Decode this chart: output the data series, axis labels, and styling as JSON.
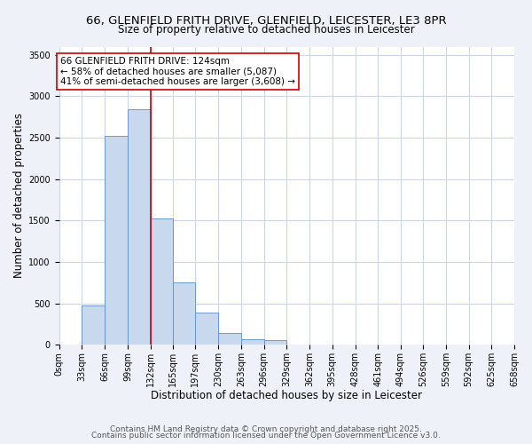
{
  "title_line1": "66, GLENFIELD FRITH DRIVE, GLENFIELD, LEICESTER, LE3 8PR",
  "title_line2": "Size of property relative to detached houses in Leicester",
  "xlabel": "Distribution of detached houses by size in Leicester",
  "ylabel": "Number of detached properties",
  "bar_edges": [
    0,
    33,
    66,
    99,
    132,
    165,
    197,
    230,
    263,
    296,
    329,
    362,
    395,
    428,
    461,
    494,
    526,
    559,
    592,
    625,
    658
  ],
  "bar_values": [
    0,
    480,
    2520,
    2840,
    1530,
    750,
    390,
    140,
    70,
    55,
    0,
    0,
    0,
    0,
    0,
    0,
    0,
    0,
    0,
    0
  ],
  "bar_color": "#c8d9ed",
  "bar_edge_color": "#5b8fc9",
  "vline_x": 132,
  "vline_color": "#cc0000",
  "annotation_box_text": "66 GLENFIELD FRITH DRIVE: 124sqm\n← 58% of detached houses are smaller (5,087)\n41% of semi-detached houses are larger (3,608) →",
  "box_edge_color": "#cc0000",
  "ylim": [
    0,
    3600
  ],
  "yticks": [
    0,
    500,
    1000,
    1500,
    2000,
    2500,
    3000,
    3500
  ],
  "tick_labels": [
    "0sqm",
    "33sqm",
    "66sqm",
    "99sqm",
    "132sqm",
    "165sqm",
    "197sqm",
    "230sqm",
    "263sqm",
    "296sqm",
    "329sqm",
    "362sqm",
    "395sqm",
    "428sqm",
    "461sqm",
    "494sqm",
    "526sqm",
    "559sqm",
    "592sqm",
    "625sqm",
    "658sqm"
  ],
  "footnote1": "Contains HM Land Registry data © Crown copyright and database right 2025.",
  "footnote2": "Contains public sector information licensed under the Open Government Licence v3.0.",
  "bg_color": "#eef2f8",
  "plot_bg_color": "#ffffff",
  "grid_color": "#c5d5e8",
  "title_fontsize": 9.5,
  "subtitle_fontsize": 8.5,
  "axis_label_fontsize": 8.5,
  "tick_fontsize": 7,
  "annotation_fontsize": 7.5,
  "footnote_fontsize": 6.5
}
